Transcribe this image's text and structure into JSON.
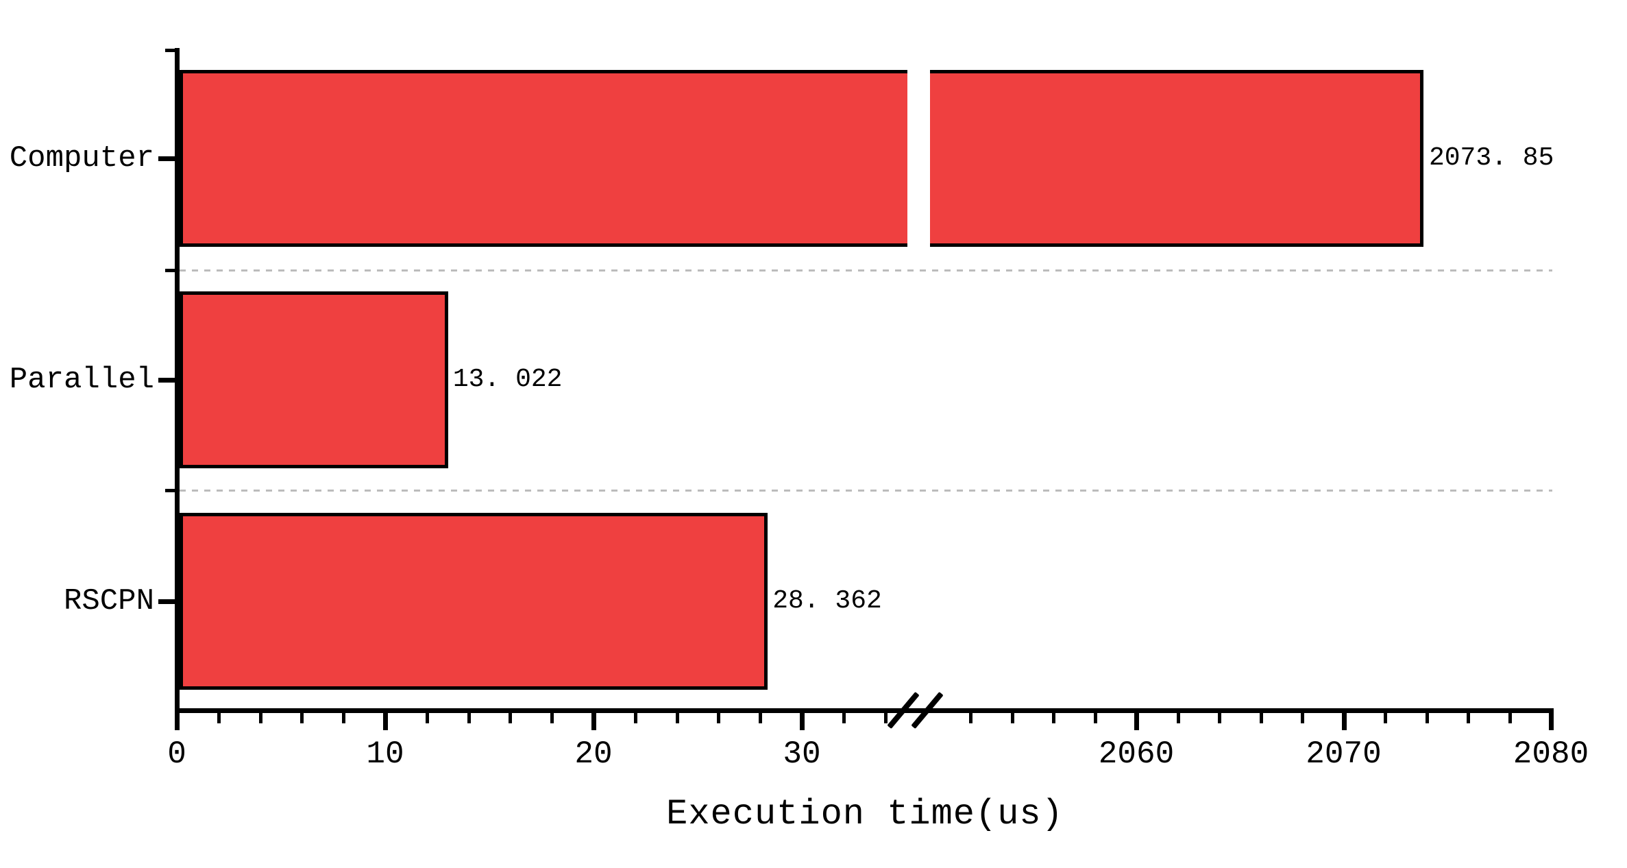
{
  "chart_data": {
    "type": "bar",
    "orientation": "horizontal",
    "title": "",
    "xlabel": "Execution time(us)",
    "ylabel": "",
    "categories": [
      "Computer",
      "Parallel",
      "RSCPN"
    ],
    "values": [
      2073.85,
      13.022,
      28.362
    ],
    "value_labels": [
      "2073. 85",
      "13. 022",
      "28. 362"
    ],
    "bar_color": "#ef4040",
    "bar_border_color": "#000000",
    "gridline_color": "#bcbcbc",
    "legend": {
      "visible": false
    },
    "grid": "dashed horizontal lines at category boundaries",
    "axis_break": {
      "symbol": "//",
      "left_segment_range": [
        0,
        35
      ],
      "right_segment_range": [
        2050,
        2080
      ]
    },
    "x_axis": {
      "left_major_ticks": [
        0,
        10,
        20,
        30
      ],
      "right_major_ticks": [
        2060,
        2070,
        2080
      ],
      "minor_tick_interval": 2,
      "left_minor_max": 34,
      "right_minor_min": 2052,
      "right_minor_max": 2078
    }
  }
}
